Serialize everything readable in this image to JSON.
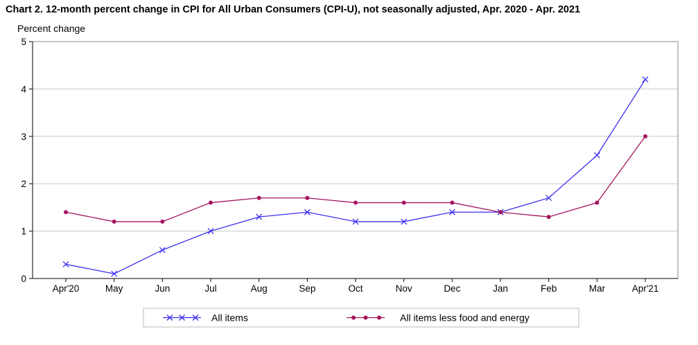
{
  "chart_data": {
    "type": "line",
    "title": "Chart 2. 12-month percent change in CPI for All Urban Consumers (CPI-U), not seasonally adjusted, Apr. 2020 - Apr. 2021",
    "ylabel": "Percent change",
    "xlabel": "",
    "ylim": [
      0,
      5
    ],
    "yticks": [
      "0",
      "1",
      "2",
      "3",
      "4",
      "5"
    ],
    "grid": true,
    "legend_position": "bottom",
    "categories": [
      "Apr'20",
      "May",
      "Jun",
      "Jul",
      "Aug",
      "Sep",
      "Oct",
      "Nov",
      "Dec",
      "Jan",
      "Feb",
      "Mar",
      "Apr'21"
    ],
    "series": [
      {
        "name": "All items",
        "color": "#3b2ff0",
        "marker": "x",
        "values": [
          0.3,
          0.1,
          0.6,
          1.0,
          1.3,
          1.4,
          1.2,
          1.2,
          1.4,
          1.4,
          1.7,
          2.6,
          4.2
        ]
      },
      {
        "name": "All items less food and energy",
        "color": "#a3145e",
        "marker": "dot",
        "values": [
          1.4,
          1.2,
          1.2,
          1.6,
          1.7,
          1.7,
          1.6,
          1.6,
          1.6,
          1.4,
          1.3,
          1.6,
          3.0
        ]
      }
    ]
  }
}
